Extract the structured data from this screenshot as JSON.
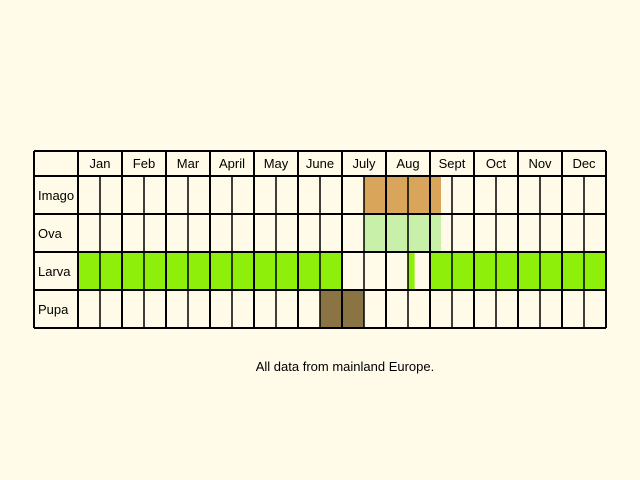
{
  "chart_data": {
    "type": "table",
    "months": [
      "Jan",
      "Feb",
      "Mar",
      "April",
      "May",
      "June",
      "July",
      "Aug",
      "Sept",
      "Oct",
      "Nov",
      "Dec"
    ],
    "rows": [
      {
        "name": "Imago",
        "color": "#d9a55b",
        "half_months": [
          0,
          0,
          0,
          0,
          0,
          0,
          0,
          0,
          0,
          0,
          0,
          0,
          0,
          1,
          1,
          1,
          0.5,
          0,
          0,
          0,
          0,
          0,
          0,
          0
        ]
      },
      {
        "name": "Ova",
        "color": "#c8f0a8",
        "half_months": [
          0,
          0,
          0,
          0,
          0,
          0,
          0,
          0,
          0,
          0,
          0,
          0,
          0,
          1,
          1,
          1,
          0.5,
          0,
          0,
          0,
          0,
          0,
          0,
          0
        ]
      },
      {
        "name": "Larva",
        "color": "#8ef00a",
        "half_months": [
          1,
          1,
          1,
          1,
          1,
          1,
          1,
          1,
          1,
          1,
          1,
          1,
          0,
          0,
          0,
          0.3,
          1,
          1,
          1,
          1,
          1,
          1,
          1,
          1
        ]
      },
      {
        "name": "Pupa",
        "color": "#8b7443",
        "half_months": [
          0,
          0,
          0,
          0,
          0,
          0,
          0,
          0,
          0,
          0,
          0,
          1,
          1,
          0,
          0,
          0,
          0,
          0,
          0,
          0,
          0,
          0,
          0,
          0
        ]
      }
    ],
    "note": "All data from mainland Europe.",
    "colors": {
      "background": "#fffbe8",
      "grid": "#000000"
    }
  }
}
